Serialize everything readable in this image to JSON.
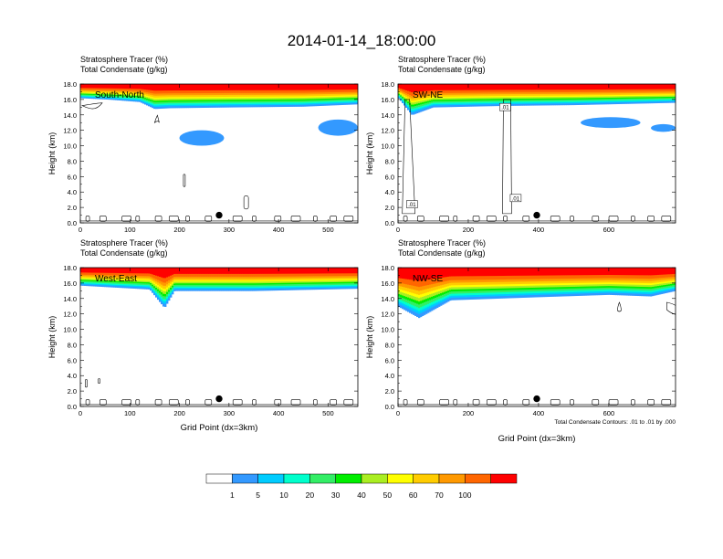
{
  "title": "2014-01-14_18:00:00",
  "colors": {
    "levels": [
      "#ffffff",
      "#3399ff",
      "#00ccff",
      "#00ffcc",
      "#33ee66",
      "#00ee00",
      "#aaee22",
      "#ffff00",
      "#ffcc00",
      "#ff9900",
      "#ff6600",
      "#ff0000"
    ],
    "contour": "#000000",
    "marker": "#000000"
  },
  "colorbar": {
    "labels": [
      "1",
      "5",
      "10",
      "20",
      "30",
      "40",
      "50",
      "60",
      "70",
      "100"
    ]
  },
  "footer": {
    "contour_info": "Total Condensate Contours: .01 to .01 by .000"
  },
  "chart_data": [
    {
      "type": "heatmap",
      "name": "south-north",
      "label": "South-North",
      "title_left": "Stratosphere Tracer   (%)",
      "title_left2": "Total Condensate   (g/kg)",
      "ylabel": "Height (km)",
      "xlabel": "",
      "xlim": [
        0,
        560
      ],
      "ylim": [
        0,
        18
      ],
      "xticks": [
        "0",
        "100",
        "200",
        "300",
        "400",
        "500"
      ],
      "xtick_values": [
        0,
        100,
        200,
        300,
        400,
        500
      ],
      "yticks": [
        "0.0",
        "2.0",
        "4.0",
        "6.0",
        "8.0",
        "10.0",
        "12.0",
        "14.0",
        "16.0",
        "18.0"
      ],
      "tropopause_km": [
        [
          0,
          16.2
        ],
        [
          60,
          16.0
        ],
        [
          120,
          15.7
        ],
        [
          150,
          14.8
        ],
        [
          180,
          14.9
        ],
        [
          300,
          15.0
        ],
        [
          450,
          15.1
        ],
        [
          560,
          15.4
        ]
      ],
      "marker": {
        "x": 280,
        "y": 1.0
      },
      "blue_blobs": [
        {
          "x": [
            480,
            560
          ],
          "y": [
            11.3,
            13.4
          ]
        },
        {
          "x": [
            200,
            290
          ],
          "y": [
            10.0,
            12.0
          ]
        }
      ],
      "contour_labels": []
    },
    {
      "type": "heatmap",
      "name": "sw-ne",
      "label": "SW-NE",
      "title_left": "Stratosphere Tracer   (%)",
      "title_left2": "Total Condensate   (g/kg)",
      "ylabel": "Height (km)",
      "xlabel": "",
      "xlim": [
        0,
        790
      ],
      "ylim": [
        0,
        18
      ],
      "xticks": [
        "0",
        "200",
        "400",
        "600"
      ],
      "xtick_values": [
        0,
        200,
        400,
        600
      ],
      "yticks": [
        "0.0",
        "2.0",
        "4.0",
        "6.0",
        "8.0",
        "10.0",
        "12.0",
        "14.0",
        "16.0",
        "18.0"
      ],
      "tropopause_km": [
        [
          0,
          16.3
        ],
        [
          40,
          14.0
        ],
        [
          100,
          15.0
        ],
        [
          300,
          15.2
        ],
        [
          500,
          15.3
        ],
        [
          790,
          15.6
        ]
      ],
      "marker": {
        "x": 395,
        "y": 1.0
      },
      "blue_blobs": [
        {
          "x": [
            520,
            690
          ],
          "y": [
            12.3,
            13.7
          ]
        },
        {
          "x": [
            720,
            790
          ],
          "y": [
            11.8,
            12.8
          ]
        }
      ],
      "contour_labels": [
        ".01",
        ".01",
        ".01"
      ]
    },
    {
      "type": "heatmap",
      "name": "west-east",
      "label": "West-East",
      "title_left": "Stratosphere Tracer   (%)",
      "title_left2": "Total Condensate   (g/kg)",
      "ylabel": "Height (km)",
      "xlabel": "Grid Point (dx=3km)",
      "xlim": [
        0,
        560
      ],
      "ylim": [
        0,
        18
      ],
      "xticks": [
        "0",
        "100",
        "200",
        "300",
        "400",
        "500"
      ],
      "xtick_values": [
        0,
        100,
        200,
        300,
        400,
        500
      ],
      "yticks": [
        "0.0",
        "2.0",
        "4.0",
        "6.0",
        "8.0",
        "10.0",
        "12.0",
        "14.0",
        "16.0",
        "18.0"
      ],
      "tropopause_km": [
        [
          0,
          15.7
        ],
        [
          140,
          15.2
        ],
        [
          170,
          12.8
        ],
        [
          190,
          15.0
        ],
        [
          350,
          15.0
        ],
        [
          560,
          15.3
        ]
      ],
      "marker": {
        "x": 280,
        "y": 1.0
      },
      "blue_blobs": [],
      "contour_labels": []
    },
    {
      "type": "heatmap",
      "name": "nw-se",
      "label": "NW-SE",
      "title_left": "Stratosphere Tracer   (%)",
      "title_left2": "Total Condensate   (g/kg)",
      "ylabel": "Height (km)",
      "xlabel": "Grid Point (dx=3km)",
      "xlim": [
        0,
        790
      ],
      "ylim": [
        0,
        18
      ],
      "xticks": [
        "0",
        "200",
        "400",
        "600"
      ],
      "xtick_values": [
        0,
        200,
        400,
        600
      ],
      "yticks": [
        "0.0",
        "2.0",
        "4.0",
        "6.0",
        "8.0",
        "10.0",
        "12.0",
        "14.0",
        "16.0",
        "18.0"
      ],
      "tropopause_km": [
        [
          0,
          13.0
        ],
        [
          60,
          11.5
        ],
        [
          150,
          13.8
        ],
        [
          400,
          14.2
        ],
        [
          600,
          14.5
        ],
        [
          720,
          14.3
        ],
        [
          790,
          15.0
        ]
      ],
      "marker": {
        "x": 395,
        "y": 1.0
      },
      "blue_blobs": [],
      "contour_labels": []
    }
  ]
}
